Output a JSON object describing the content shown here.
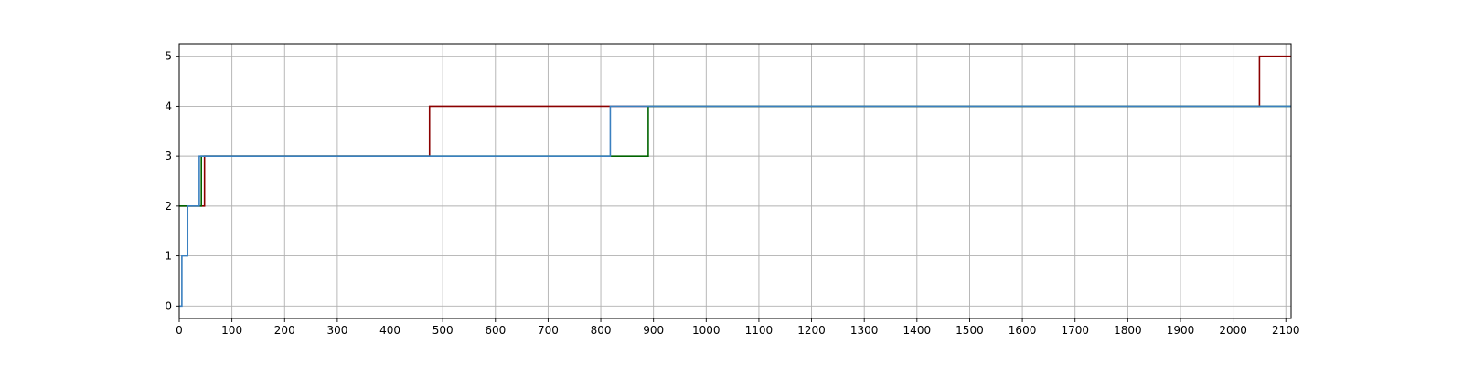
{
  "chart_data": {
    "type": "line",
    "step": true,
    "title": "",
    "xlabel": "",
    "ylabel": "",
    "xlim": [
      0,
      2110
    ],
    "ylim": [
      -0.25,
      5.25
    ],
    "xticks": [
      0,
      100,
      200,
      300,
      400,
      500,
      600,
      700,
      800,
      900,
      1000,
      1100,
      1200,
      1300,
      1400,
      1500,
      1600,
      1700,
      1800,
      1900,
      2000,
      2100
    ],
    "yticks": [
      0,
      1,
      2,
      3,
      4,
      5
    ],
    "grid": true,
    "legend": false,
    "series": [
      {
        "color": "#8b0000",
        "points": [
          [
            0,
            2
          ],
          [
            48,
            2
          ],
          [
            48,
            3
          ],
          [
            475,
            3
          ],
          [
            475,
            4
          ],
          [
            2050,
            4
          ],
          [
            2050,
            5
          ],
          [
            2110,
            5
          ]
        ]
      },
      {
        "color": "#006400",
        "points": [
          [
            0,
            2
          ],
          [
            42,
            2
          ],
          [
            42,
            3
          ],
          [
            890,
            3
          ],
          [
            890,
            4
          ],
          [
            2110,
            4
          ]
        ]
      },
      {
        "color": "#3a80c0",
        "points": [
          [
            0,
            0
          ],
          [
            5,
            0
          ],
          [
            5,
            1
          ],
          [
            16,
            1
          ],
          [
            16,
            2
          ],
          [
            38,
            2
          ],
          [
            38,
            3
          ],
          [
            818,
            3
          ],
          [
            818,
            4
          ],
          [
            2110,
            4
          ]
        ]
      }
    ]
  }
}
